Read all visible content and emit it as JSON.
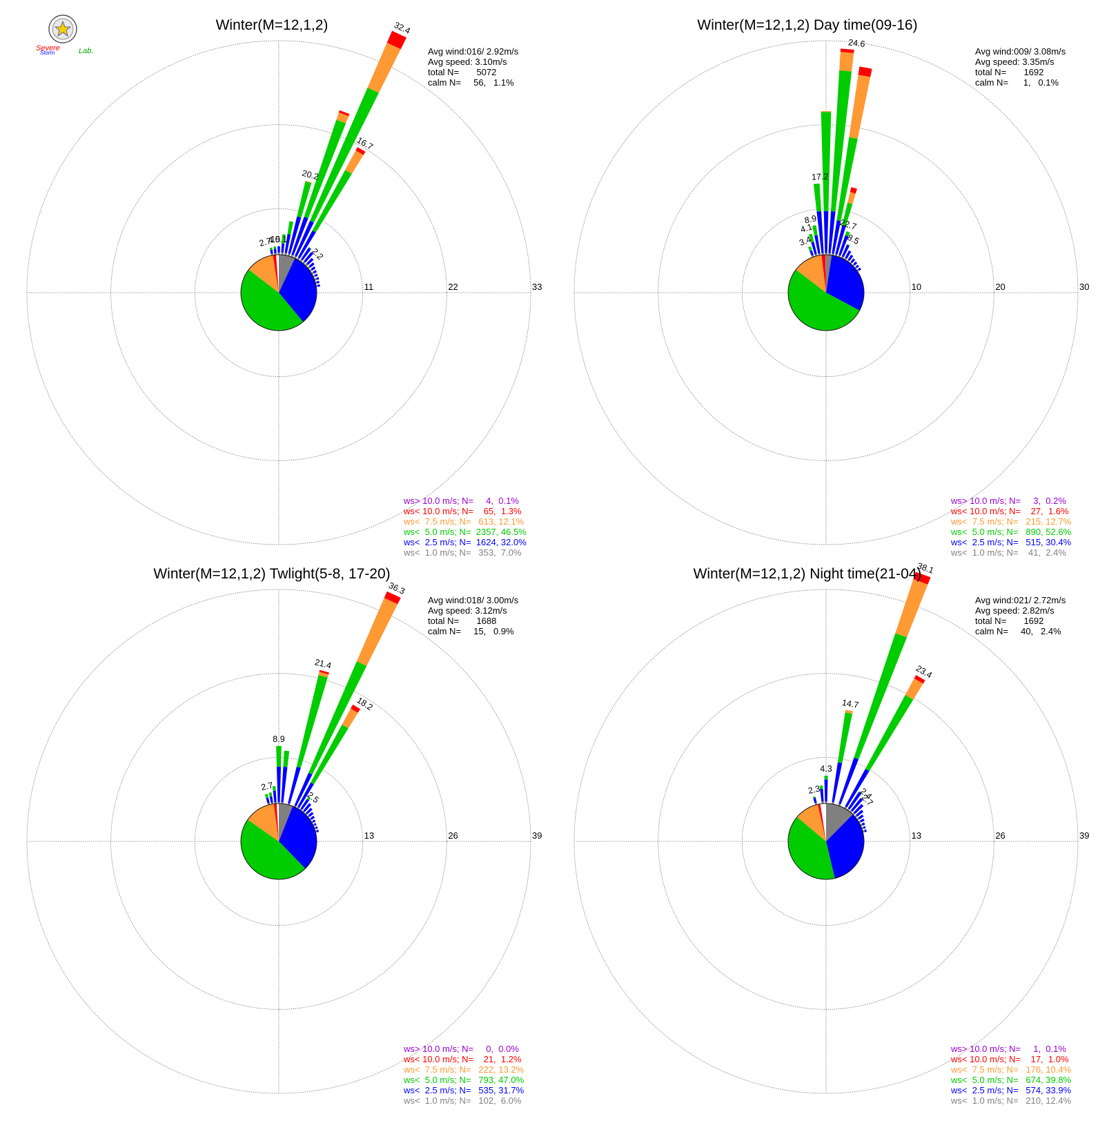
{
  "logo": {
    "line1": "Severe",
    "line2": "Storm",
    "line3": "Lab."
  },
  "colors": {
    "gt10": "#9900cc",
    "lt10": "#ff0000",
    "lt75": "#ff9933",
    "lt5": "#00cc00",
    "lt25": "#0000ff",
    "lt1": "#808080",
    "grid": "#777777"
  },
  "chart_data": [
    {
      "type": "wind_rose",
      "title": "Winter(M=12,1,2)",
      "rings": [
        11,
        22,
        33
      ],
      "ring_labels": [
        "11",
        "22",
        "33"
      ],
      "stats": [
        "Avg wind:016/ 2.92m/s",
        "Avg speed: 3.10m/s",
        "total N=       5072",
        "calm N=     56,   1.1%"
      ],
      "legend": [
        {
          "text": "ws> 10.0 m/s; N=     4,  0.1%",
          "color": "#9900cc"
        },
        {
          "text": "ws< 10.0 m/s; N=    65,  1.3%",
          "color": "#ff0000"
        },
        {
          "text": "ws<  7.5 m/s; N=   613, 12.1%",
          "color": "#ff9933"
        },
        {
          "text": "ws<  5.0 m/s; N=  2357, 46.5%",
          "color": "#00cc00"
        },
        {
          "text": "ws<  2.5 m/s; N=  1624, 32.0%",
          "color": "#0000ff"
        },
        {
          "text": "ws<  1.0 m/s; N=   353,  7.0%",
          "color": "#808080"
        }
      ],
      "pie": [
        7.0,
        32.0,
        46.5,
        12.1,
        1.3,
        0.1,
        1.1
      ],
      "sectors": [
        {
          "dir": 350,
          "v": [
            0.2,
            0.5,
            0.3,
            0.0,
            0.0
          ]
        },
        {
          "dir": 355,
          "v": [
            0.2,
            0.6,
            0.3,
            0.0,
            0.0
          ]
        },
        {
          "dir": 0,
          "v": [
            0.3,
            0.8,
            0.0,
            0.0,
            0.0
          ]
        },
        {
          "dir": 5,
          "v": [
            0.3,
            1.2,
            1.2,
            0.0,
            0.0
          ]
        },
        {
          "dir": 10,
          "v": [
            0.3,
            2.5,
            1.7,
            0.0,
            0.0
          ]
        },
        {
          "dir": 15,
          "v": [
            0.3,
            5.0,
            4.7,
            0.1,
            0.0
          ]
        },
        {
          "dir": 20,
          "v": [
            0.3,
            5.2,
            13.4,
            1.0,
            0.3
          ]
        },
        {
          "dir": 25,
          "v": [
            0.3,
            5.0,
            19.0,
            6.4,
            1.7
          ]
        },
        {
          "dir": 30,
          "v": [
            0.3,
            4.0,
            9.0,
            2.9,
            0.5
          ]
        },
        {
          "dir": 35,
          "v": [
            0.3,
            1.8,
            0.1,
            0.0,
            0.0
          ]
        },
        {
          "dir": 40,
          "v": [
            0.3,
            1.5,
            0.0,
            0.0,
            0.0
          ]
        },
        {
          "dir": 45,
          "v": [
            0.3,
            1.0,
            0.0,
            0.0,
            0.0
          ]
        },
        {
          "dir": 50,
          "v": [
            0.3,
            0.7,
            0.0,
            0.0,
            0.0
          ]
        },
        {
          "dir": 55,
          "v": [
            0.3,
            0.5,
            0.0,
            0.0,
            0.0
          ]
        },
        {
          "dir": 60,
          "v": [
            0.3,
            0.4,
            0.0,
            0.0,
            0.0
          ]
        },
        {
          "dir": 65,
          "v": [
            0.3,
            0.3,
            0.0,
            0.0,
            0.0
          ]
        },
        {
          "dir": 70,
          "v": [
            0.3,
            0.3,
            0.0,
            0.0,
            0.0
          ]
        },
        {
          "dir": 75,
          "v": [
            0.2,
            0.3,
            0.0,
            0.0,
            0.0
          ]
        },
        {
          "dir": 80,
          "v": [
            0.2,
            0.3,
            0.0,
            0.0,
            0.0
          ]
        }
      ],
      "labels": [
        {
          "dir": 345,
          "text": "2.7"
        },
        {
          "dir": 355,
          "text": "4.5"
        },
        {
          "dir": 0,
          "text": "10.1"
        },
        {
          "dir": 15,
          "text": "20.2"
        },
        {
          "dir": 25,
          "text": "32.4"
        },
        {
          "dir": 30,
          "text": "16.7"
        },
        {
          "dir": 45,
          "text": "2.2"
        }
      ]
    },
    {
      "type": "wind_rose",
      "title": "Winter(M=12,1,2) Day time(09-16)",
      "rings": [
        10,
        20,
        30
      ],
      "ring_labels": [
        "10",
        "20",
        "30"
      ],
      "stats": [
        "Avg wind:009/ 3.08m/s",
        "Avg speed: 3.35m/s",
        "total N=       1692",
        "calm N=      1,   0.1%"
      ],
      "legend": [
        {
          "text": "ws> 10.0 m/s; N=     3,  0.2%",
          "color": "#9900cc"
        },
        {
          "text": "ws< 10.0 m/s; N=    27,  1.6%",
          "color": "#ff0000"
        },
        {
          "text": "ws<  7.5 m/s; N=   215, 12.7%",
          "color": "#ff9933"
        },
        {
          "text": "ws<  5.0 m/s; N=   890, 52.6%",
          "color": "#00cc00"
        },
        {
          "text": "ws<  2.5 m/s; N=   515, 30.4%",
          "color": "#0000ff"
        },
        {
          "text": "ws<  1.0 m/s; N=    41,  2.4%",
          "color": "#808080"
        }
      ],
      "pie": [
        2.4,
        30.4,
        52.6,
        12.7,
        1.6,
        0.2,
        0.1
      ],
      "sectors": [
        {
          "dir": 340,
          "v": [
            0.2,
            0.6,
            0.5,
            0.0,
            0.0
          ]
        },
        {
          "dir": 345,
          "v": [
            0.2,
            1.5,
            1.0,
            0.0,
            0.0
          ]
        },
        {
          "dir": 350,
          "v": [
            0.2,
            2.2,
            1.2,
            0.0,
            0.0
          ]
        },
        {
          "dir": 355,
          "v": [
            0.2,
            5.0,
            3.3,
            0.0,
            0.0
          ]
        },
        {
          "dir": 0,
          "v": [
            0.2,
            5.0,
            11.8,
            0.1,
            0.0
          ]
        },
        {
          "dir": 5,
          "v": [
            0.2,
            5.0,
            16.8,
            2.2,
            0.4
          ]
        },
        {
          "dir": 10,
          "v": [
            0.2,
            4.0,
            10.0,
            7.5,
            1.0
          ]
        },
        {
          "dir": 15,
          "v": [
            0.2,
            3.5,
            2.8,
            1.3,
            0.6
          ]
        },
        {
          "dir": 20,
          "v": [
            0.2,
            2.5,
            0.5,
            0.0,
            0.0
          ]
        },
        {
          "dir": 25,
          "v": [
            0.2,
            1.5,
            0.1,
            0.0,
            0.0
          ]
        },
        {
          "dir": 30,
          "v": [
            0.2,
            1.0,
            0.0,
            0.0,
            0.0
          ]
        },
        {
          "dir": 35,
          "v": [
            0.2,
            0.7,
            0.0,
            0.0,
            0.0
          ]
        },
        {
          "dir": 40,
          "v": [
            0.2,
            0.5,
            0.0,
            0.0,
            0.0
          ]
        },
        {
          "dir": 45,
          "v": [
            0.2,
            0.4,
            0.0,
            0.0,
            0.0
          ]
        },
        {
          "dir": 50,
          "v": [
            0.2,
            0.3,
            0.0,
            0.0,
            0.0
          ]
        },
        {
          "dir": 55,
          "v": [
            0.2,
            0.3,
            0.0,
            0.0,
            0.0
          ]
        }
      ],
      "labels": [
        {
          "dir": 338,
          "text": "3.4"
        },
        {
          "dir": 343,
          "text": "4.1"
        },
        {
          "dir": 348,
          "text": "8.9"
        },
        {
          "dir": 357,
          "text": "17.2"
        },
        {
          "dir": 7,
          "text": "24.6"
        },
        {
          "dir": 18,
          "text": "22.7"
        },
        {
          "dir": 27,
          "text": "8.5"
        }
      ]
    },
    {
      "type": "wind_rose",
      "title": "Winter(M=12,1,2) Twlight(5-8, 17-20)",
      "rings": [
        13,
        26,
        39
      ],
      "ring_labels": [
        "13",
        "26",
        "39"
      ],
      "stats": [
        "Avg wind:018/ 3.00m/s",
        "Avg speed: 3.12m/s",
        "total N=       1688",
        "calm N=     15,   0.9%"
      ],
      "legend": [
        {
          "text": "ws> 10.0 m/s; N=     0,  0.0%",
          "color": "#9900cc"
        },
        {
          "text": "ws< 10.0 m/s; N=    21,  1.2%",
          "color": "#ff0000"
        },
        {
          "text": "ws<  7.5 m/s; N=   222, 13.2%",
          "color": "#ff9933"
        },
        {
          "text": "ws<  5.0 m/s; N=   793, 47.0%",
          "color": "#00cc00"
        },
        {
          "text": "ws<  2.5 m/s; N=   535, 31.7%",
          "color": "#0000ff"
        },
        {
          "text": "ws<  1.0 m/s; N=   102,  6.0%",
          "color": "#808080"
        }
      ],
      "pie": [
        6.0,
        31.7,
        47.0,
        13.2,
        1.2,
        0.0,
        0.9
      ],
      "sectors": [
        {
          "dir": 345,
          "v": [
            0.2,
            0.9,
            0.6,
            0.0,
            0.0
          ]
        },
        {
          "dir": 350,
          "v": [
            0.2,
            1.0,
            0.6,
            0.0,
            0.0
          ]
        },
        {
          "dir": 355,
          "v": [
            0.2,
            1.8,
            0.7,
            0.0,
            0.0
          ]
        },
        {
          "dir": 0,
          "v": [
            0.2,
            5.5,
            3.2,
            0.0,
            0.0
          ]
        },
        {
          "dir": 5,
          "v": [
            0.2,
            5.5,
            2.5,
            0.0,
            0.0
          ]
        },
        {
          "dir": 15,
          "v": [
            0.2,
            5.8,
            14.6,
            0.5,
            0.3
          ]
        },
        {
          "dir": 25,
          "v": [
            0.2,
            5.5,
            18.8,
            10.7,
            1.1
          ]
        },
        {
          "dir": 30,
          "v": [
            0.2,
            4.3,
            10.2,
            2.8,
            0.7
          ]
        },
        {
          "dir": 35,
          "v": [
            0.2,
            1.8,
            0.3,
            0.0,
            0.0
          ]
        },
        {
          "dir": 40,
          "v": [
            0.2,
            1.5,
            0.0,
            0.0,
            0.0
          ]
        },
        {
          "dir": 45,
          "v": [
            0.2,
            1.1,
            0.0,
            0.0,
            0.0
          ]
        },
        {
          "dir": 50,
          "v": [
            0.2,
            0.8,
            0.0,
            0.0,
            0.0
          ]
        },
        {
          "dir": 55,
          "v": [
            0.2,
            0.6,
            0.0,
            0.0,
            0.0
          ]
        },
        {
          "dir": 60,
          "v": [
            0.2,
            0.4,
            0.0,
            0.0,
            0.0
          ]
        },
        {
          "dir": 65,
          "v": [
            0.2,
            0.3,
            0.0,
            0.0,
            0.0
          ]
        },
        {
          "dir": 70,
          "v": [
            0.2,
            0.3,
            0.0,
            0.0,
            0.0
          ]
        },
        {
          "dir": 75,
          "v": [
            0.2,
            0.3,
            0.0,
            0.0,
            0.0
          ]
        }
      ],
      "labels": [
        {
          "dir": 348,
          "text": "2.7"
        },
        {
          "dir": 0,
          "text": "8.9"
        },
        {
          "dir": 14,
          "text": "21.4"
        },
        {
          "dir": 25,
          "text": "36.3"
        },
        {
          "dir": 32,
          "text": "18.2"
        },
        {
          "dir": 38,
          "text": "2.5"
        }
      ]
    },
    {
      "type": "wind_rose",
      "title": "Winter(M=12,1,2) Night time(21-04)",
      "rings": [
        13,
        26,
        39
      ],
      "ring_labels": [
        "13",
        "26",
        "39"
      ],
      "stats": [
        "Avg wind:021/ 2.72m/s",
        "Avg speed: 2.82m/s",
        "total N=       1692",
        "calm N=     40,   2.4%"
      ],
      "legend": [
        {
          "text": "ws> 10.0 m/s; N=     1,  0.1%",
          "color": "#9900cc"
        },
        {
          "text": "ws< 10.0 m/s; N=    17,  1.0%",
          "color": "#ff0000"
        },
        {
          "text": "ws<  7.5 m/s; N=   176, 10.4%",
          "color": "#ff9933"
        },
        {
          "text": "ws<  5.0 m/s; N=   674, 39.8%",
          "color": "#00cc00"
        },
        {
          "text": "ws<  2.5 m/s; N=   574, 33.9%",
          "color": "#0000ff"
        },
        {
          "text": "ws<  1.0 m/s; N=   210, 12.4%",
          "color": "#808080"
        }
      ],
      "pie": [
        12.4,
        33.9,
        39.8,
        10.4,
        1.0,
        0.1,
        2.4
      ],
      "sectors": [
        {
          "dir": 345,
          "v": [
            0.3,
            0.8,
            0.2,
            0.0,
            0.0
          ]
        },
        {
          "dir": 355,
          "v": [
            0.3,
            2.0,
            0.5,
            0.0,
            0.0
          ]
        },
        {
          "dir": 0,
          "v": [
            0.3,
            3.4,
            0.6,
            0.0,
            0.0
          ]
        },
        {
          "dir": 10,
          "v": [
            0.3,
            6.2,
            7.8,
            0.4,
            0.0
          ]
        },
        {
          "dir": 20,
          "v": [
            0.3,
            7.5,
            20.3,
            8.8,
            1.2
          ]
        },
        {
          "dir": 30,
          "v": [
            0.3,
            6.6,
            13.0,
            2.9,
            0.6
          ]
        },
        {
          "dir": 35,
          "v": [
            0.3,
            3.0,
            0.1,
            0.0,
            0.0
          ]
        },
        {
          "dir": 40,
          "v": [
            0.3,
            2.4,
            0.0,
            0.0,
            0.0
          ]
        },
        {
          "dir": 45,
          "v": [
            0.3,
            1.8,
            0.0,
            0.0,
            0.0
          ]
        },
        {
          "dir": 50,
          "v": [
            0.3,
            1.2,
            0.0,
            0.0,
            0.0
          ]
        },
        {
          "dir": 55,
          "v": [
            0.3,
            0.8,
            0.0,
            0.0,
            0.0
          ]
        },
        {
          "dir": 60,
          "v": [
            0.3,
            0.6,
            0.0,
            0.0,
            0.0
          ]
        },
        {
          "dir": 65,
          "v": [
            0.3,
            0.4,
            0.0,
            0.0,
            0.0
          ]
        },
        {
          "dir": 70,
          "v": [
            0.3,
            0.3,
            0.0,
            0.0,
            0.0
          ]
        },
        {
          "dir": 75,
          "v": [
            0.3,
            0.3,
            0.0,
            0.0,
            0.0
          ]
        }
      ],
      "labels": [
        {
          "dir": 347,
          "text": "2.3"
        },
        {
          "dir": 0,
          "text": "4.3"
        },
        {
          "dir": 10,
          "text": "14.7"
        },
        {
          "dir": 20,
          "text": "38.1"
        },
        {
          "dir": 30,
          "text": "23.4"
        },
        {
          "dir": 40,
          "text": "2.4"
        },
        {
          "dir": 45,
          "text": "2.7"
        }
      ]
    }
  ]
}
